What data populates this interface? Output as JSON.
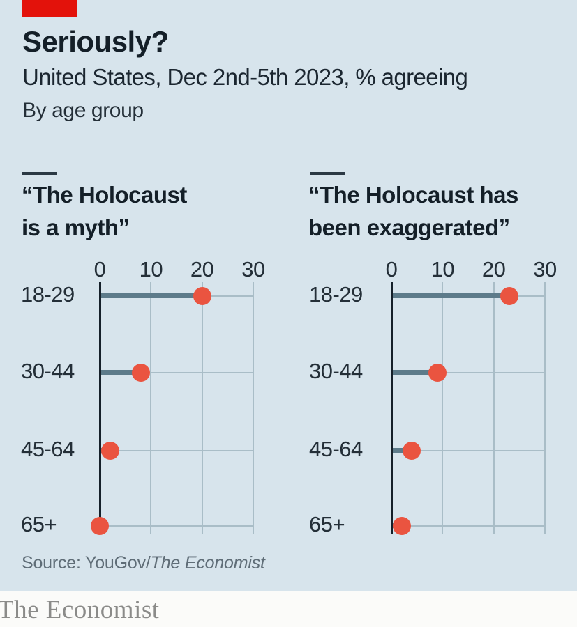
{
  "header": {
    "title": "Seriously?",
    "subtitle": "United States, Dec 2nd-5th 2023, % agreeing",
    "group_note": "By age group"
  },
  "source": {
    "prefix": "Source: YouGov/",
    "publication": "The Economist"
  },
  "footer": {
    "logo_text": "The Economist"
  },
  "colors": {
    "background": "#d7e4ec",
    "brand_red": "#e3120b",
    "heading_text": "#141f28",
    "dot": "#ea5440",
    "bar": "#5d7b8a",
    "axis": "#15202a",
    "gridline": "#a9bdc7",
    "source_text": "#5f6d77",
    "footer_background": "#fbfbf9",
    "footer_text": "#8b8b89"
  },
  "chart_data": [
    {
      "type": "bar",
      "subtype": "lollipop",
      "title": "“The Holocaust\nis a myth”",
      "categories": [
        "18-29",
        "30-44",
        "45-64",
        "65+"
      ],
      "values": [
        20,
        8,
        2,
        0
      ],
      "x_ticks": [
        0,
        10,
        20,
        30
      ],
      "xlim": [
        0,
        30
      ],
      "xlabel": "% agreeing",
      "grid": true,
      "legend": "none"
    },
    {
      "type": "bar",
      "subtype": "lollipop",
      "title": "“The Holocaust has\nbeen exaggerated”",
      "categories": [
        "18-29",
        "30-44",
        "45-64",
        "65+"
      ],
      "values": [
        23,
        9,
        4,
        2
      ],
      "x_ticks": [
        0,
        10,
        20,
        30
      ],
      "xlim": [
        0,
        30
      ],
      "xlabel": "% agreeing",
      "grid": true,
      "legend": "none"
    }
  ]
}
